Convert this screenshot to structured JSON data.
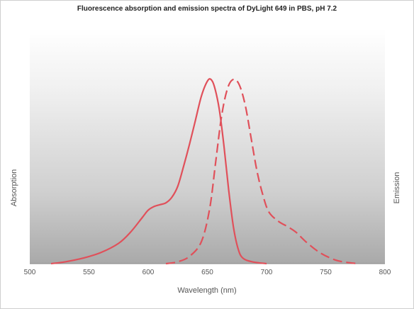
{
  "chart_data": {
    "type": "line",
    "title": "Fluorescence absorption and emission spectra of DyLight 649 in PBS, pH 7.2",
    "xlabel": "Wavelength (nm)",
    "ylabel_left": "Absorption",
    "ylabel_right": "Emission",
    "xlim": [
      500,
      800
    ],
    "ylim": [
      0,
      1
    ],
    "xticks": [
      "500",
      "550",
      "600",
      "650",
      "700",
      "750",
      "800"
    ],
    "grid": false,
    "series": [
      {
        "style": "solid",
        "color": "#e0505a",
        "points": [
          [
            518,
            0.0
          ],
          [
            530,
            0.01
          ],
          [
            545,
            0.03
          ],
          [
            560,
            0.06
          ],
          [
            575,
            0.11
          ],
          [
            585,
            0.17
          ],
          [
            595,
            0.25
          ],
          [
            600,
            0.29
          ],
          [
            605,
            0.31
          ],
          [
            610,
            0.32
          ],
          [
            615,
            0.33
          ],
          [
            620,
            0.36
          ],
          [
            625,
            0.42
          ],
          [
            630,
            0.53
          ],
          [
            635,
            0.65
          ],
          [
            640,
            0.78
          ],
          [
            645,
            0.91
          ],
          [
            650,
            0.99
          ],
          [
            653,
            1.0
          ],
          [
            656,
            0.96
          ],
          [
            660,
            0.84
          ],
          [
            664,
            0.64
          ],
          [
            668,
            0.4
          ],
          [
            672,
            0.2
          ],
          [
            676,
            0.08
          ],
          [
            680,
            0.03
          ],
          [
            688,
            0.01
          ],
          [
            700,
            0.0
          ]
        ]
      },
      {
        "style": "dashed",
        "color": "#e0505a",
        "points": [
          [
            615,
            0.0
          ],
          [
            625,
            0.01
          ],
          [
            635,
            0.04
          ],
          [
            645,
            0.12
          ],
          [
            652,
            0.3
          ],
          [
            657,
            0.55
          ],
          [
            662,
            0.8
          ],
          [
            667,
            0.95
          ],
          [
            672,
            1.0
          ],
          [
            677,
            0.97
          ],
          [
            682,
            0.86
          ],
          [
            687,
            0.68
          ],
          [
            692,
            0.5
          ],
          [
            697,
            0.37
          ],
          [
            702,
            0.28
          ],
          [
            710,
            0.23
          ],
          [
            718,
            0.2
          ],
          [
            725,
            0.17
          ],
          [
            733,
            0.12
          ],
          [
            745,
            0.06
          ],
          [
            758,
            0.02
          ],
          [
            770,
            0.005
          ],
          [
            778,
            0.0
          ]
        ]
      }
    ]
  }
}
